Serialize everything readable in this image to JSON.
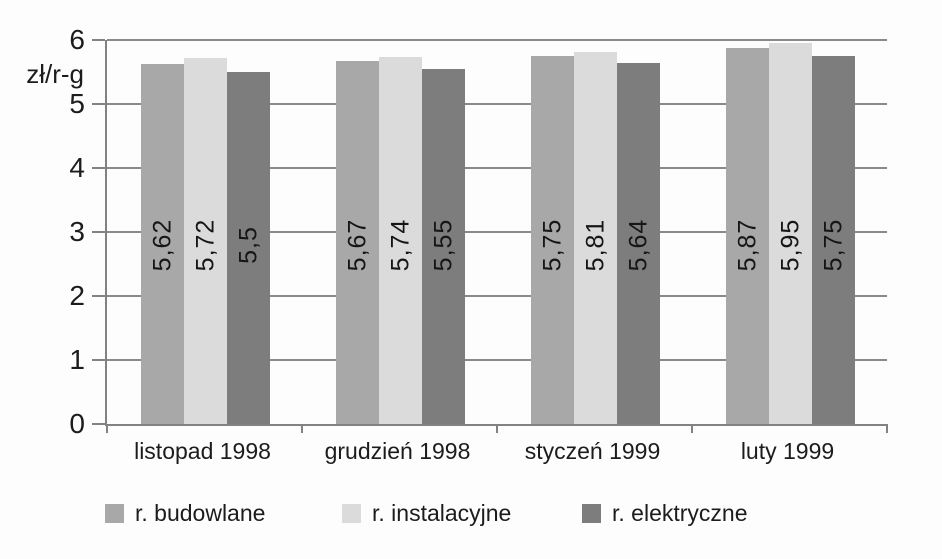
{
  "chart_data": {
    "type": "bar",
    "title": "",
    "ylabel": "zł/r-g",
    "xlabel": "",
    "ylim": [
      0,
      6
    ],
    "yticks": [
      0,
      1,
      2,
      3,
      4,
      5,
      6
    ],
    "grid": true,
    "legend_position": "bottom",
    "categories": [
      "listopad 1998",
      "grudzień 1998",
      "styczeń 1999",
      "luty 1999"
    ],
    "series": [
      {
        "name": "r. budowlane",
        "color": "#a8a8a8",
        "values": [
          5.62,
          5.67,
          5.75,
          5.87
        ],
        "labels": [
          "5,62",
          "5,67",
          "5,75",
          "5,87"
        ]
      },
      {
        "name": "r. instalacyjne",
        "color": "#dbdbdb",
        "values": [
          5.72,
          5.74,
          5.81,
          5.95
        ],
        "labels": [
          "5,72",
          "5,74",
          "5,81",
          "5,95"
        ]
      },
      {
        "name": "r. elektryczne",
        "color": "#7d7d7d",
        "values": [
          5.5,
          5.55,
          5.64,
          5.75
        ],
        "labels": [
          "5,5",
          "5,55",
          "5,64",
          "5,75"
        ]
      }
    ]
  }
}
